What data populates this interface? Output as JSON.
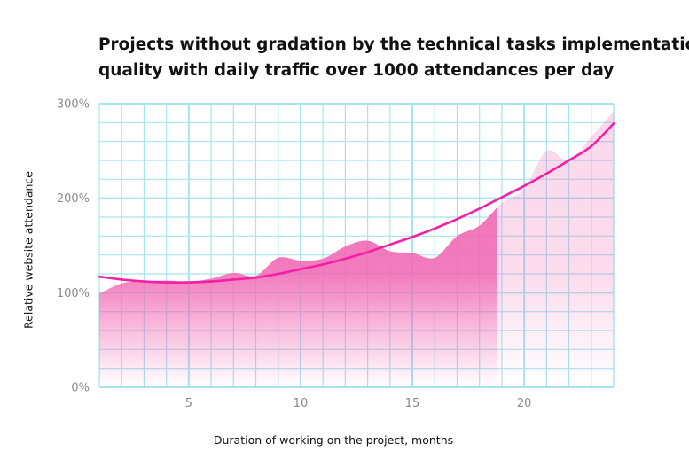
{
  "chart_data": {
    "type": "area",
    "title_lines": [
      "Projects without gradation by the technical tasks implementation",
      "quality with daily traffic over 1000 attendances per day"
    ],
    "xlabel": "Duration of working on the project, months",
    "ylabel": "Relative website attendance",
    "xlim": [
      1,
      24
    ],
    "ylim": [
      0,
      300
    ],
    "x_ticks": [
      5,
      10,
      15,
      20
    ],
    "y_ticks": [
      0,
      100,
      200,
      300
    ],
    "y_tick_labels": [
      "0%",
      "100%",
      "200%",
      "300%"
    ],
    "grid": true,
    "series": [
      {
        "type": "area",
        "x": [
          1,
          2,
          3,
          4,
          5,
          6,
          7,
          8,
          9,
          10,
          11,
          12,
          13,
          14,
          15,
          16,
          17,
          18,
          19,
          20,
          21,
          22,
          23,
          24
        ],
        "values": [
          99,
          110,
          112,
          113,
          112,
          115,
          121,
          118,
          137,
          134,
          136,
          149,
          155,
          144,
          142,
          137,
          160,
          171,
          195,
          210,
          250,
          240,
          265,
          292
        ]
      },
      {
        "type": "line",
        "x": [
          1,
          2,
          3,
          4,
          5,
          6,
          7,
          8,
          9,
          10,
          11,
          12,
          13,
          14,
          15,
          16,
          17,
          18,
          19,
          20,
          21,
          22,
          23,
          24
        ],
        "values": [
          117,
          114,
          112,
          111,
          111,
          112,
          114,
          116,
          120,
          125,
          130,
          136,
          143,
          151,
          159,
          168,
          178,
          189,
          201,
          213,
          226,
          240,
          255,
          279
        ]
      }
    ],
    "colors": {
      "area": "#f06ab4",
      "line": "#f41fa9",
      "grid": "#a7e4ee",
      "tick_label": "#8a8a8a"
    }
  }
}
